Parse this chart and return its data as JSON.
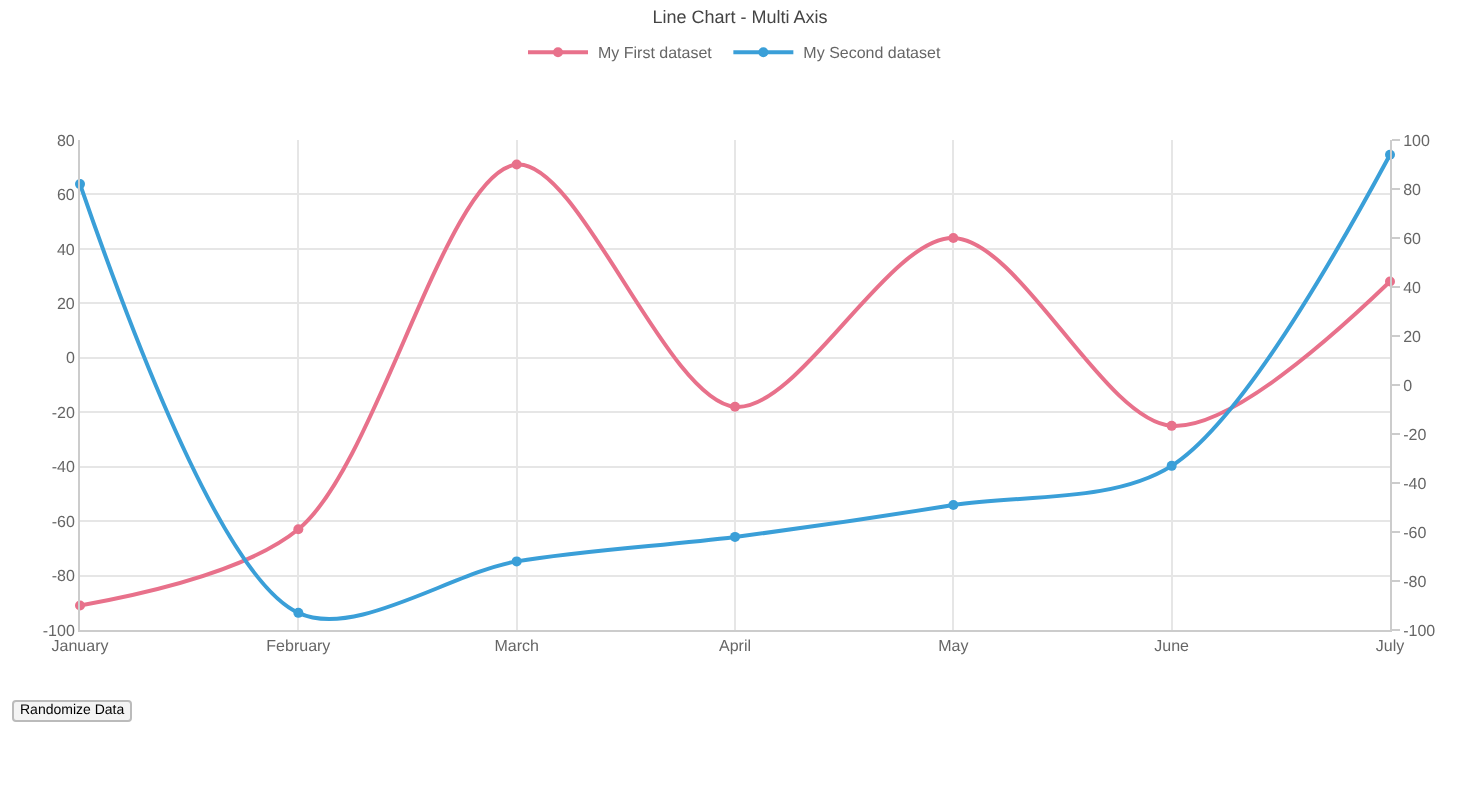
{
  "chart_data": {
    "type": "line",
    "title": "Line Chart - Multi Axis",
    "categories": [
      "January",
      "February",
      "March",
      "April",
      "May",
      "June",
      "July"
    ],
    "series": [
      {
        "name": "My First dataset",
        "color": "#e8718b",
        "values": [
          -91,
          -63,
          71,
          -18,
          44,
          -25,
          28
        ]
      },
      {
        "name": "My Second dataset",
        "color": "#3a9fd8",
        "axis": "y2",
        "values": [
          82,
          -93,
          -72,
          -62,
          -49,
          -33,
          94
        ]
      }
    ],
    "ylim": [
      -100,
      80
    ],
    "yticks": [
      -100,
      -80,
      -60,
      -40,
      -20,
      0,
      20,
      40,
      60,
      80
    ],
    "y2lim": [
      -100,
      100
    ],
    "y2ticks": [
      -100,
      -80,
      -60,
      -40,
      -20,
      0,
      20,
      40,
      60,
      80,
      100
    ],
    "grid": true,
    "legend": "top",
    "marker": "circle",
    "line_style": "solid",
    "annotations": [
      "Randomize Data"
    ]
  }
}
